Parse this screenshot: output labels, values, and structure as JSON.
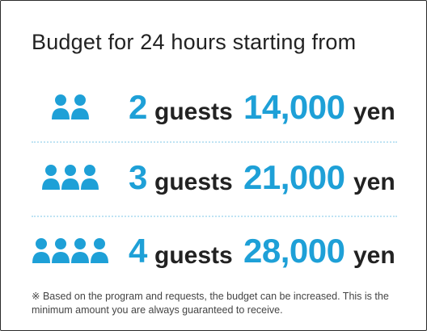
{
  "title": "Budget for 24 hours starting from",
  "accent_color": "#1ea0d7",
  "rows": [
    {
      "count": "2",
      "guests_label": "guests",
      "amount": "14,000",
      "currency": "yen",
      "icon": "person-icon"
    },
    {
      "count": "3",
      "guests_label": "guests",
      "amount": "21,000",
      "currency": "yen",
      "icon": "person-icon"
    },
    {
      "count": "4",
      "guests_label": "guests",
      "amount": "28,000",
      "currency": "yen",
      "icon": "person-icon"
    }
  ],
  "note": "※ Based on the program and requests, the budget can be increased. This is the minimum amount you are always guaranteed to receive."
}
